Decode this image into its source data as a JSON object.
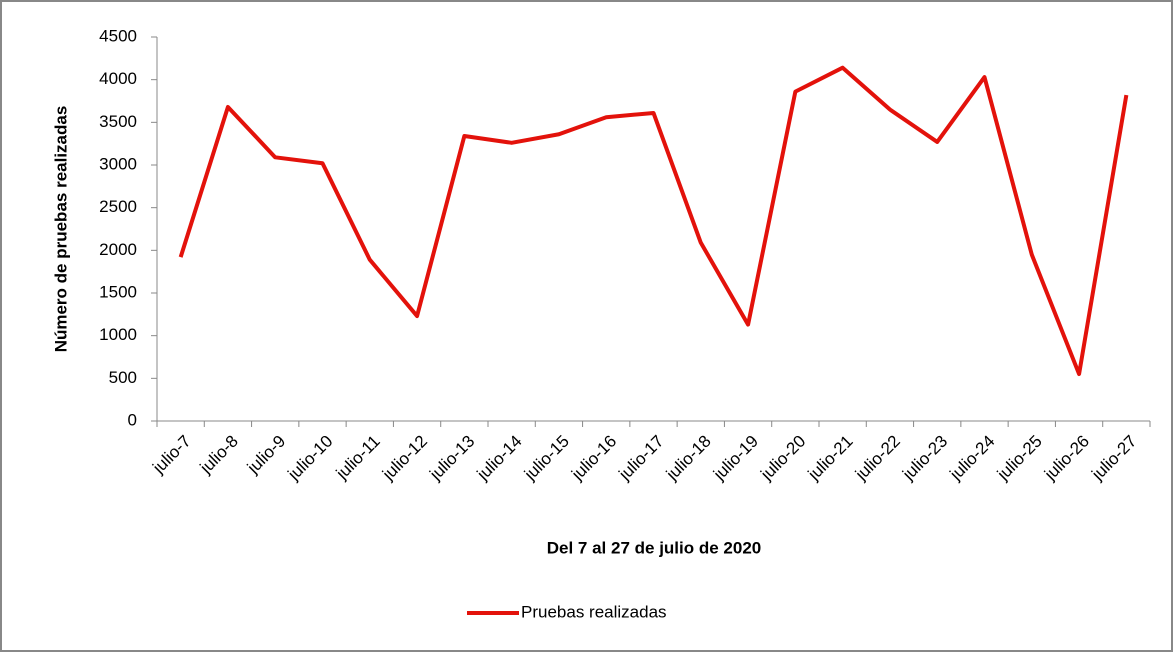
{
  "chart_data": {
    "type": "line",
    "ylabel": "Número de pruebas realizadas",
    "xlabel": "Del 7 al 27 de julio de 2020",
    "categories": [
      "julio-7",
      "julio-8",
      "julio-9",
      "julio-10",
      "julio-11",
      "julio-12",
      "julio-13",
      "julio-14",
      "julio-15",
      "julio-16",
      "julio-17",
      "julio-18",
      "julio-19",
      "julio-20",
      "julio-21",
      "julio-22",
      "julio-23",
      "julio-24",
      "julio-25",
      "julio-26",
      "julio-27"
    ],
    "series": [
      {
        "name": "Pruebas realizadas",
        "color": "#e3120b",
        "values": [
          1920,
          3680,
          3090,
          3020,
          1890,
          1230,
          3340,
          3260,
          3360,
          3560,
          3610,
          2090,
          1130,
          3860,
          4140,
          3650,
          3270,
          4030,
          1950,
          550,
          3820
        ]
      }
    ],
    "ylim": [
      0,
      4500
    ],
    "yticks": [
      0,
      500,
      1000,
      1500,
      2000,
      2500,
      3000,
      3500,
      4000,
      4500
    ],
    "grid": false,
    "legend": "bottom"
  }
}
